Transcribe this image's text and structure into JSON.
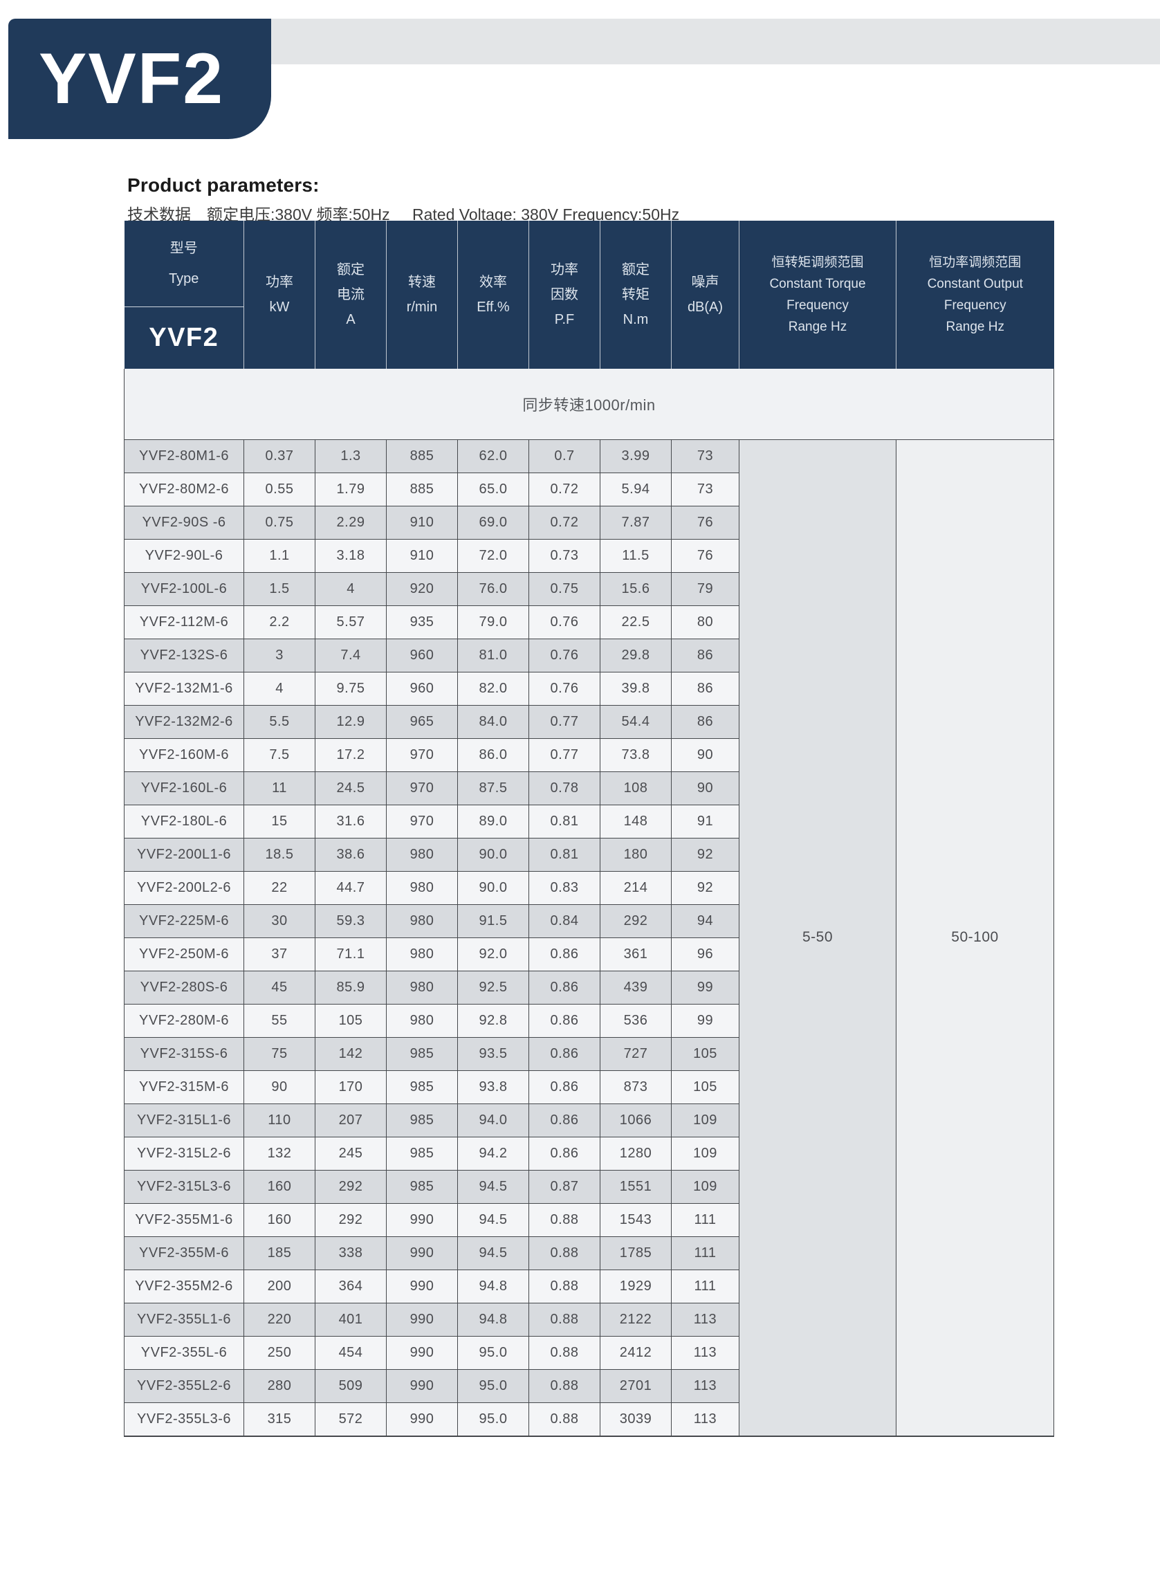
{
  "header": {
    "badge": "YVF2",
    "title": "Product parameters:",
    "subtitle_cn": "技术数据　额定电压:380V 频率:50Hz",
    "subtitle_en": "Rated Voltage: 380V  Frequency:50Hz"
  },
  "colors": {
    "accent_navy": "#203a5a",
    "top_bar_gray": "#e3e5e7",
    "row_gray": "#d8dbdf",
    "row_light": "#f4f5f7",
    "subheader_bg": "#f0f2f4",
    "torque_range_bg": "#dfe2e5",
    "output_range_bg": "#eef0f2",
    "grid_line": "#45484c"
  },
  "table": {
    "type_header": {
      "cn": "型号",
      "en": "Type",
      "series": "YVF2"
    },
    "columns": [
      {
        "lines": [
          "功率",
          "kW"
        ]
      },
      {
        "lines": [
          "额定",
          "电流",
          "A"
        ]
      },
      {
        "lines": [
          "转速",
          "r/min"
        ]
      },
      {
        "lines": [
          "效率",
          "Eff.%"
        ]
      },
      {
        "lines": [
          "功率",
          "因数",
          "P.F"
        ]
      },
      {
        "lines": [
          "额定",
          "转矩",
          "N.m"
        ]
      },
      {
        "lines": [
          "噪声",
          "dB(A)"
        ]
      },
      {
        "lines": [
          "恒转矩调频范围",
          "Constant Torque",
          "Frequency",
          "Range Hz"
        ]
      },
      {
        "lines": [
          "恒功率调频范围",
          "Constant Output",
          "Frequency",
          "Range Hz"
        ]
      }
    ],
    "subheader": "同步转速1000r/min",
    "constant_torque_range": "5-50",
    "constant_output_range": "50-100",
    "rows": [
      [
        "YVF2-80M1-6",
        "0.37",
        "1.3",
        "885",
        "62.0",
        "0.7",
        "3.99",
        "73"
      ],
      [
        "YVF2-80M2-6",
        "0.55",
        "1.79",
        "885",
        "65.0",
        "0.72",
        "5.94",
        "73"
      ],
      [
        "YVF2-90S -6",
        "0.75",
        "2.29",
        "910",
        "69.0",
        "0.72",
        "7.87",
        "76"
      ],
      [
        "YVF2-90L-6",
        "1.1",
        "3.18",
        "910",
        "72.0",
        "0.73",
        "11.5",
        "76"
      ],
      [
        "YVF2-100L-6",
        "1.5",
        "4",
        "920",
        "76.0",
        "0.75",
        "15.6",
        "79"
      ],
      [
        "YVF2-112M-6",
        "2.2",
        "5.57",
        "935",
        "79.0",
        "0.76",
        "22.5",
        "80"
      ],
      [
        "YVF2-132S-6",
        "3",
        "7.4",
        "960",
        "81.0",
        "0.76",
        "29.8",
        "86"
      ],
      [
        "YVF2-132M1-6",
        "4",
        "9.75",
        "960",
        "82.0",
        "0.76",
        "39.8",
        "86"
      ],
      [
        "YVF2-132M2-6",
        "5.5",
        "12.9",
        "965",
        "84.0",
        "0.77",
        "54.4",
        "86"
      ],
      [
        "YVF2-160M-6",
        "7.5",
        "17.2",
        "970",
        "86.0",
        "0.77",
        "73.8",
        "90"
      ],
      [
        "YVF2-160L-6",
        "11",
        "24.5",
        "970",
        "87.5",
        "0.78",
        "108",
        "90"
      ],
      [
        "YVF2-180L-6",
        "15",
        "31.6",
        "970",
        "89.0",
        "0.81",
        "148",
        "91"
      ],
      [
        "YVF2-200L1-6",
        "18.5",
        "38.6",
        "980",
        "90.0",
        "0.81",
        "180",
        "92"
      ],
      [
        "YVF2-200L2-6",
        "22",
        "44.7",
        "980",
        "90.0",
        "0.83",
        "214",
        "92"
      ],
      [
        "YVF2-225M-6",
        "30",
        "59.3",
        "980",
        "91.5",
        "0.84",
        "292",
        "94"
      ],
      [
        "YVF2-250M-6",
        "37",
        "71.1",
        "980",
        "92.0",
        "0.86",
        "361",
        "96"
      ],
      [
        "YVF2-280S-6",
        "45",
        "85.9",
        "980",
        "92.5",
        "0.86",
        "439",
        "99"
      ],
      [
        "YVF2-280M-6",
        "55",
        "105",
        "980",
        "92.8",
        "0.86",
        "536",
        "99"
      ],
      [
        "YVF2-315S-6",
        "75",
        "142",
        "985",
        "93.5",
        "0.86",
        "727",
        "105"
      ],
      [
        "YVF2-315M-6",
        "90",
        "170",
        "985",
        "93.8",
        "0.86",
        "873",
        "105"
      ],
      [
        "YVF2-315L1-6",
        "110",
        "207",
        "985",
        "94.0",
        "0.86",
        "1066",
        "109"
      ],
      [
        "YVF2-315L2-6",
        "132",
        "245",
        "985",
        "94.2",
        "0.86",
        "1280",
        "109"
      ],
      [
        "YVF2-315L3-6",
        "160",
        "292",
        "985",
        "94.5",
        "0.87",
        "1551",
        "109"
      ],
      [
        "YVF2-355M1-6",
        "160",
        "292",
        "990",
        "94.5",
        "0.88",
        "1543",
        "111"
      ],
      [
        "YVF2-355M-6",
        "185",
        "338",
        "990",
        "94.5",
        "0.88",
        "1785",
        "111"
      ],
      [
        "YVF2-355M2-6",
        "200",
        "364",
        "990",
        "94.8",
        "0.88",
        "1929",
        "111"
      ],
      [
        "YVF2-355L1-6",
        "220",
        "401",
        "990",
        "94.8",
        "0.88",
        "2122",
        "113"
      ],
      [
        "YVF2-355L-6",
        "250",
        "454",
        "990",
        "95.0",
        "0.88",
        "2412",
        "113"
      ],
      [
        "YVF2-355L2-6",
        "280",
        "509",
        "990",
        "95.0",
        "0.88",
        "2701",
        "113"
      ],
      [
        "YVF2-355L3-6",
        "315",
        "572",
        "990",
        "95.0",
        "0.88",
        "3039",
        "113"
      ]
    ]
  }
}
